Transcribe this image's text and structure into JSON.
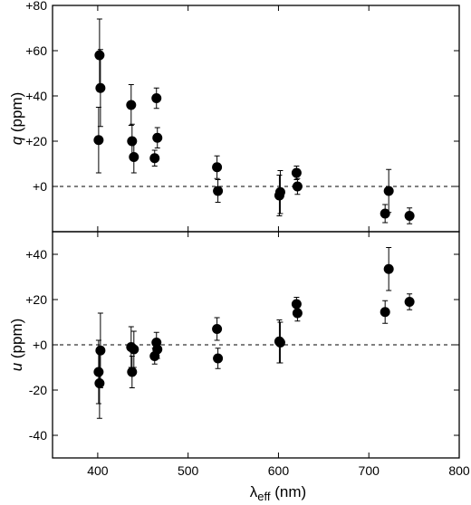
{
  "chart_data": [
    {
      "type": "scatter",
      "panel": "top",
      "ylabel": "q (ppm)",
      "ylabel_var": "q",
      "ylabel_unit": " (ppm)",
      "xlim": [
        350,
        800
      ],
      "ylim": [
        -20,
        80
      ],
      "yticks": [
        0,
        20,
        40,
        60,
        80
      ],
      "ytick_labels": [
        "+0",
        "+20",
        "+40",
        "+60",
        "+80"
      ],
      "reference_line": 0,
      "points": [
        {
          "x": 401,
          "y": 20.5,
          "err": 14.5
        },
        {
          "x": 402,
          "y": 58,
          "err": 16
        },
        {
          "x": 403,
          "y": 43.5,
          "err": 17
        },
        {
          "x": 437,
          "y": 36,
          "err": 9
        },
        {
          "x": 438,
          "y": 20,
          "err": 7.5
        },
        {
          "x": 440,
          "y": 13,
          "err": 7
        },
        {
          "x": 463,
          "y": 12.5,
          "err": 3.5
        },
        {
          "x": 465,
          "y": 39,
          "err": 4.5
        },
        {
          "x": 466,
          "y": 21.5,
          "err": 4.5
        },
        {
          "x": 532,
          "y": 8.5,
          "err": 5
        },
        {
          "x": 533,
          "y": -2,
          "err": 5
        },
        {
          "x": 601,
          "y": -4,
          "err": 9
        },
        {
          "x": 602,
          "y": -2.5,
          "err": 9.5
        },
        {
          "x": 620,
          "y": 6,
          "err": 3
        },
        {
          "x": 621,
          "y": 0,
          "err": 3.5
        },
        {
          "x": 718,
          "y": -12,
          "err": 4
        },
        {
          "x": 722,
          "y": -2,
          "err": 9.5
        },
        {
          "x": 745,
          "y": -13,
          "err": 3.5
        }
      ]
    },
    {
      "type": "scatter",
      "panel": "bottom",
      "xlabel": "λeff (nm)",
      "xlabel_main": "λ",
      "xlabel_sub": "eff",
      "xlabel_unit": " (nm)",
      "ylabel": "u (ppm)",
      "ylabel_var": "u",
      "ylabel_unit": " (ppm)",
      "xlim": [
        350,
        800
      ],
      "ylim": [
        -50,
        50
      ],
      "xticks": [
        400,
        500,
        600,
        700,
        800
      ],
      "xtick_labels": [
        "400",
        "500",
        "600",
        "700",
        "800"
      ],
      "yticks": [
        -40,
        -20,
        0,
        20,
        40
      ],
      "ytick_labels": [
        "-40",
        "-20",
        "+0",
        "+20",
        "+40"
      ],
      "reference_line": 0,
      "points": [
        {
          "x": 401,
          "y": -12,
          "err": 14
        },
        {
          "x": 402,
          "y": -17,
          "err": 15.5
        },
        {
          "x": 403,
          "y": -2.5,
          "err": 16.5
        },
        {
          "x": 437,
          "y": -1,
          "err": 9
        },
        {
          "x": 438,
          "y": -12,
          "err": 7
        },
        {
          "x": 440,
          "y": -2,
          "err": 8
        },
        {
          "x": 463,
          "y": -5,
          "err": 3.5
        },
        {
          "x": 465,
          "y": 1,
          "err": 4.5
        },
        {
          "x": 466,
          "y": -2,
          "err": 4
        },
        {
          "x": 532,
          "y": 7,
          "err": 5
        },
        {
          "x": 533,
          "y": -6,
          "err": 4.5
        },
        {
          "x": 601,
          "y": 1.5,
          "err": 9.5
        },
        {
          "x": 602,
          "y": 1,
          "err": 9
        },
        {
          "x": 620,
          "y": 18,
          "err": 3
        },
        {
          "x": 621,
          "y": 14,
          "err": 3.5
        },
        {
          "x": 718,
          "y": 14.5,
          "err": 5
        },
        {
          "x": 722,
          "y": 33.5,
          "err": 9.5
        },
        {
          "x": 745,
          "y": 19,
          "err": 3.5
        }
      ]
    }
  ]
}
